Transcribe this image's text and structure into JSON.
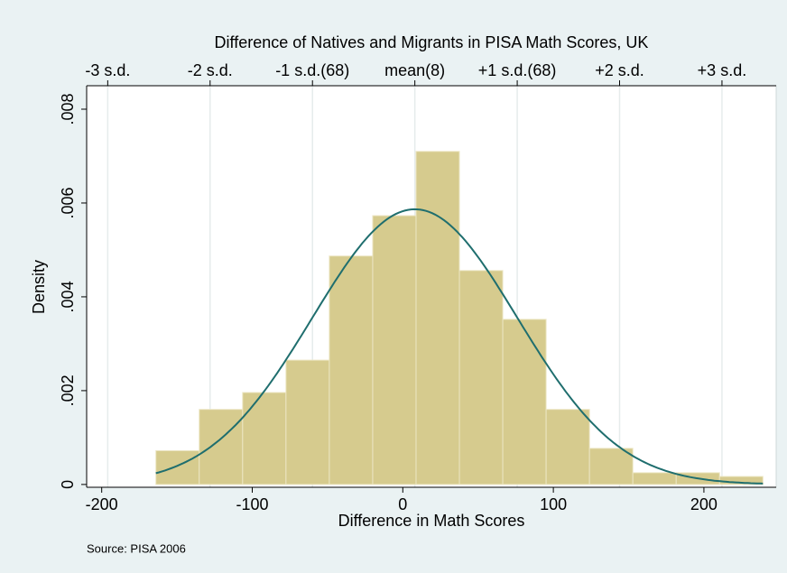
{
  "chart_data": {
    "type": "histogram",
    "title": "Difference of Natives and Migrants in PISA Math Scores, UK",
    "xlabel": "Difference in Math Scores",
    "ylabel": "Density",
    "note": "Source: PISA 2006",
    "bins": [
      -164,
      -135.2,
      -106.4,
      -77.6,
      -48.8,
      -20,
      8.8,
      37.6,
      66.4,
      95.2,
      124,
      152.8,
      181.6,
      210.4,
      239.2
    ],
    "values": [
      0.00072,
      0.0016,
      0.00196,
      0.00265,
      0.00487,
      0.00573,
      0.0071,
      0.00456,
      0.00352,
      0.0016,
      0.00077,
      0.00025,
      0.00025,
      0.00017
    ],
    "color": "#d6cb8e",
    "normal": {
      "mean": 8,
      "sd": 68,
      "color": "#1f6e6e"
    },
    "xlim": [
      -210,
      248
    ],
    "ylim": [
      -6e-05,
      0.0085
    ],
    "xticks": [
      -200,
      -100,
      0,
      100,
      200
    ],
    "yticks": [
      0,
      {
        "value": 0.002,
        "label": ".002"
      },
      {
        "value": 0.004,
        "label": ".004"
      },
      {
        "value": 0.006,
        "label": ".006"
      },
      {
        "value": 0.008,
        "label": ".008"
      }
    ],
    "x2ticks": [
      {
        "value": -196,
        "label": "-3 s.d."
      },
      {
        "value": -128,
        "label": "-2 s.d."
      },
      {
        "value": -60,
        "label": "-1 s.d.(68)"
      },
      {
        "value": 8,
        "label": "mean(8)"
      },
      {
        "value": 76,
        "label": "+1 s.d.(68)"
      },
      {
        "value": 144,
        "label": "+2 s.d."
      },
      {
        "value": 212,
        "label": "+3 s.d."
      }
    ],
    "grid": "x2"
  }
}
